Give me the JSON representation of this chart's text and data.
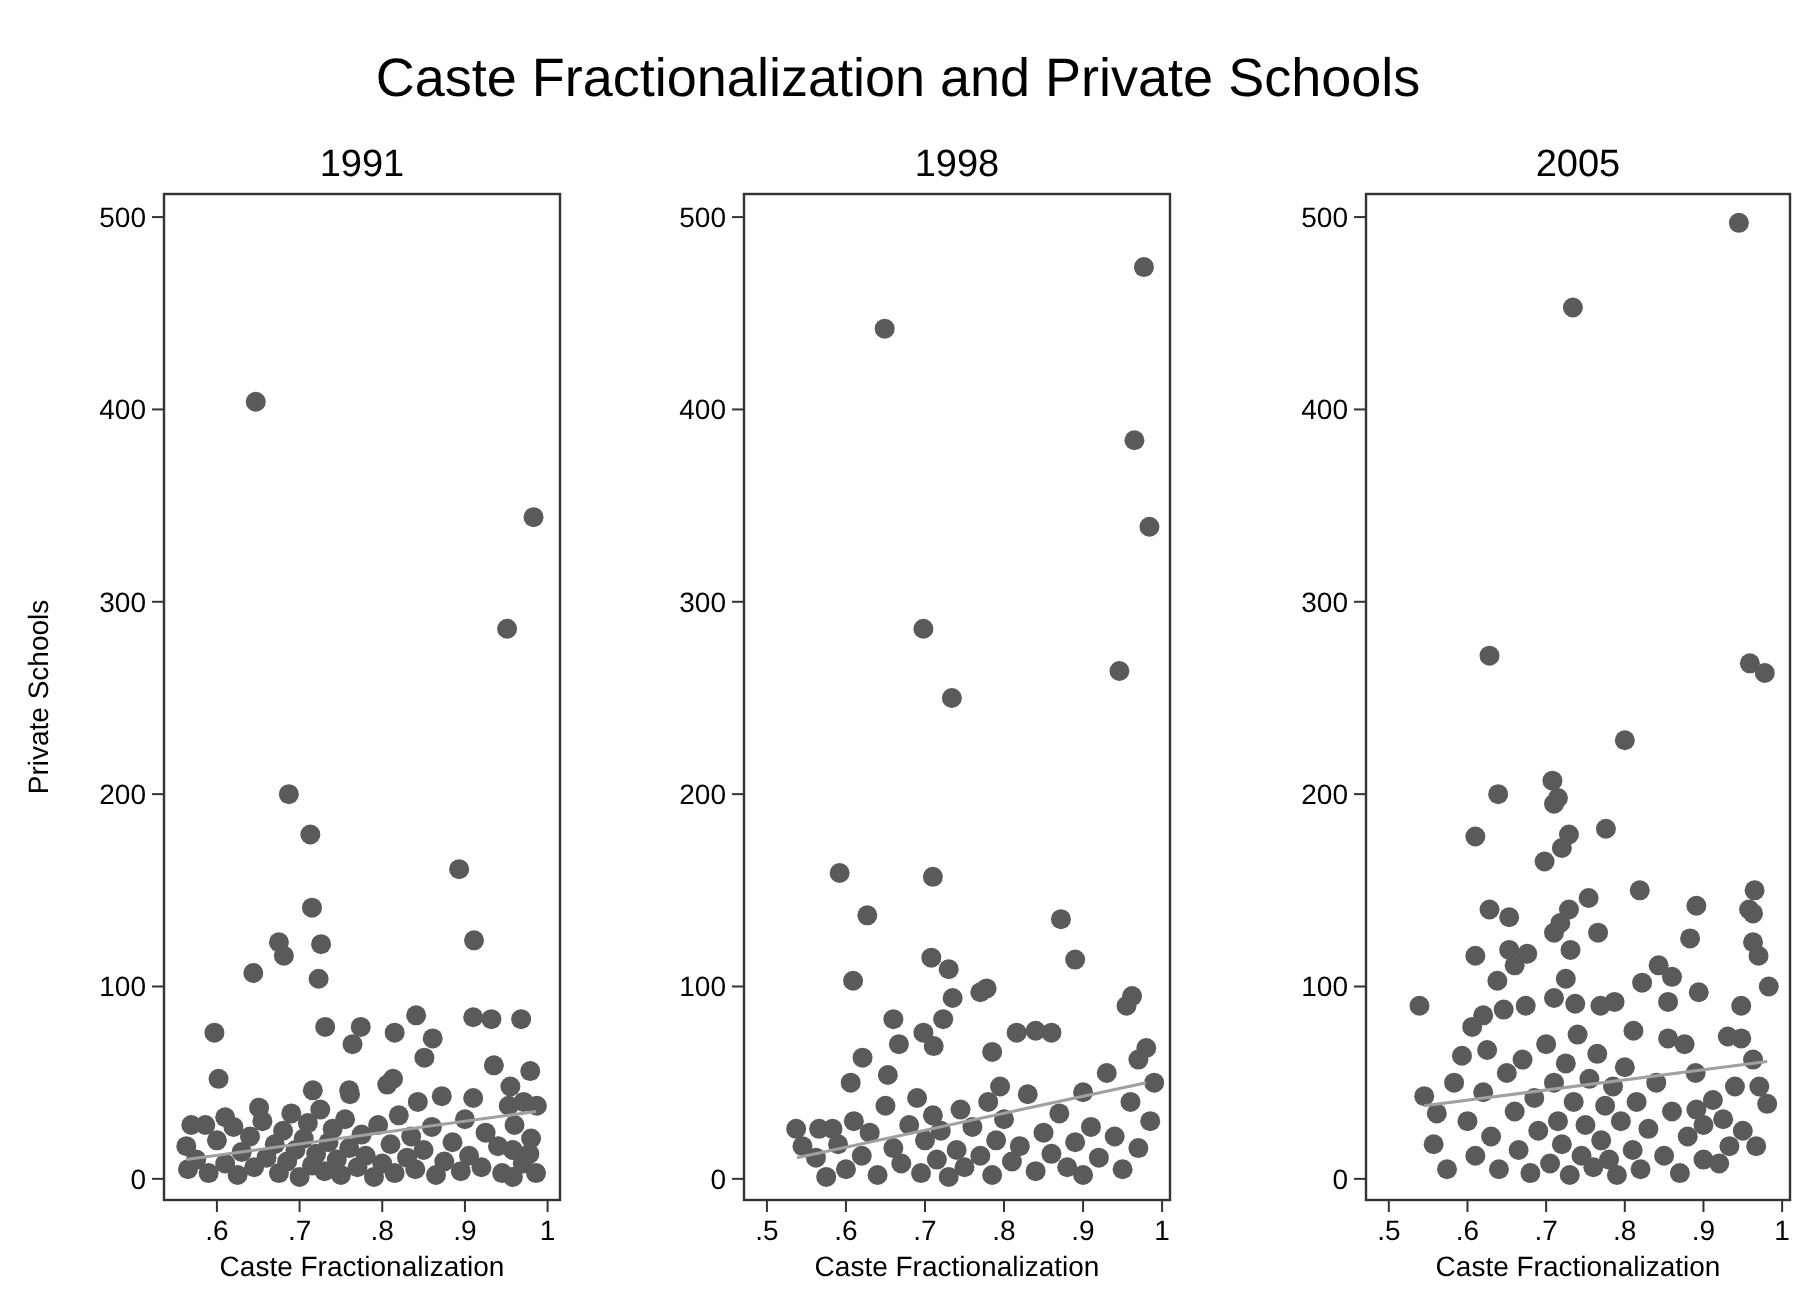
{
  "chart_data": [
    {
      "type": "scatter",
      "title": "1991",
      "xlabel": "Caste Fractionalization",
      "ylabel": "Private Schools",
      "annotations": [
        "Caste Fractionalization and Private Schools"
      ],
      "xlim": [
        0.536,
        1.015
      ],
      "ylim": [
        -11,
        512
      ],
      "xticks": [
        {
          "value": 0.6,
          "label": ".6"
        },
        {
          "value": 0.7,
          "label": ".7"
        },
        {
          "value": 0.8,
          "label": ".8"
        },
        {
          "value": 0.9,
          "label": ".9"
        },
        {
          "value": 1,
          "label": "1"
        }
      ],
      "yticks": [
        0,
        100,
        200,
        300,
        400,
        500
      ],
      "series": [
        {
          "marker": "circle",
          "color": "#5a5a5a",
          "x": [
            0.647,
            0.983,
            0.951,
            0.687,
            0.713,
            0.893,
            0.715,
            0.911,
            0.675,
            0.681,
            0.726,
            0.644,
            0.723,
            0.597,
            0.731,
            0.774,
            0.764,
            0.815,
            0.841,
            0.861,
            0.851,
            0.91,
            0.932,
            0.968,
            0.602,
            0.935,
            0.979,
            0.955,
            0.813,
            0.716,
            0.76,
            0.971,
            0.987,
            0.953,
            0.91,
            0.872,
            0.843,
            0.806,
            0.761,
            0.651,
            0.61,
            0.569,
            0.586,
            0.563,
            0.986,
            0.958,
            0.958,
            0.978,
            0.565,
            0.575,
            0.59,
            0.6,
            0.61,
            0.62,
            0.625,
            0.63,
            0.64,
            0.645,
            0.655,
            0.66,
            0.67,
            0.675,
            0.68,
            0.685,
            0.69,
            0.695,
            0.7,
            0.705,
            0.71,
            0.715,
            0.72,
            0.725,
            0.73,
            0.735,
            0.74,
            0.745,
            0.75,
            0.755,
            0.76,
            0.77,
            0.775,
            0.78,
            0.79,
            0.795,
            0.8,
            0.81,
            0.815,
            0.82,
            0.83,
            0.835,
            0.84,
            0.85,
            0.86,
            0.865,
            0.875,
            0.885,
            0.895,
            0.9,
            0.905,
            0.92,
            0.925,
            0.94,
            0.945,
            0.96,
            0.97,
            0.98
          ],
          "values": [
            404,
            344,
            286,
            200,
            179,
            161,
            141,
            124,
            123,
            116,
            122,
            107,
            104,
            76,
            79,
            79,
            70,
            76,
            85,
            73,
            63,
            84,
            83,
            83,
            52,
            59,
            56,
            48,
            52,
            46,
            46,
            40,
            38,
            38,
            42,
            43,
            40,
            49,
            44,
            37,
            32,
            28,
            28,
            17,
            3,
            1,
            15,
            13,
            5,
            10,
            3,
            20,
            8,
            27,
            2,
            14,
            22,
            6,
            30,
            11,
            18,
            3,
            25,
            9,
            34,
            15,
            1,
            21,
            29,
            7,
            13,
            36,
            4,
            19,
            26,
            10,
            2,
            31,
            16,
            6,
            23,
            12,
            1,
            28,
            8,
            18,
            3,
            33,
            11,
            22,
            5,
            15,
            27,
            2,
            9,
            19,
            4,
            31,
            12,
            6,
            24,
            17,
            3,
            28,
            8,
            21
          ]
        },
        {
          "type": "line",
          "marker": "none",
          "color": "#a0a0a0",
          "x": [
            0.563,
            0.986
          ],
          "values": [
            10,
            35
          ]
        }
      ]
    },
    {
      "type": "scatter",
      "title": "1998",
      "xlabel": "Caste Fractionalization",
      "xlim": [
        0.471,
        1.01
      ],
      "ylim": [
        -11,
        512
      ],
      "xticks": [
        {
          "value": 0.5,
          "label": ".5"
        },
        {
          "value": 0.6,
          "label": ".6"
        },
        {
          "value": 0.7,
          "label": ".7"
        },
        {
          "value": 0.8,
          "label": ".8"
        },
        {
          "value": 0.9,
          "label": ".9"
        },
        {
          "value": 1,
          "label": "1"
        }
      ],
      "yticks": [
        0,
        100,
        200,
        300,
        400,
        500
      ],
      "series": [
        {
          "marker": "circle",
          "color": "#5a5a5a",
          "x": [
            0.649,
            0.977,
            0.965,
            0.984,
            0.698,
            0.734,
            0.946,
            0.592,
            0.71,
            0.627,
            0.609,
            0.708,
            0.73,
            0.735,
            0.77,
            0.778,
            0.66,
            0.667,
            0.698,
            0.723,
            0.711,
            0.621,
            0.653,
            0.606,
            0.795,
            0.785,
            0.816,
            0.537,
            0.545,
            0.566,
            0.583,
            0.575,
            0.562,
            0.872,
            0.89,
            0.962,
            0.955,
            0.84,
            0.86,
            0.98,
            0.97,
            0.93,
            0.99,
            0.9,
            0.96,
            0.59,
            0.6,
            0.61,
            0.62,
            0.63,
            0.64,
            0.65,
            0.66,
            0.67,
            0.68,
            0.69,
            0.695,
            0.7,
            0.71,
            0.715,
            0.72,
            0.73,
            0.74,
            0.745,
            0.75,
            0.76,
            0.77,
            0.78,
            0.785,
            0.79,
            0.8,
            0.81,
            0.82,
            0.83,
            0.84,
            0.85,
            0.86,
            0.87,
            0.88,
            0.89,
            0.9,
            0.91,
            0.92,
            0.94,
            0.95,
            0.97,
            0.985
          ],
          "values": [
            442,
            474,
            384,
            339,
            286,
            250,
            264,
            159,
            157,
            137,
            103,
            115,
            109,
            94,
            97,
            99,
            83,
            70,
            76,
            83,
            69,
            63,
            54,
            50,
            48,
            66,
            76,
            26,
            17,
            26,
            26,
            1,
            11,
            135,
            114,
            95,
            90,
            77,
            76,
            68,
            62,
            55,
            50,
            45,
            40,
            18,
            5,
            30,
            12,
            24,
            2,
            38,
            16,
            8,
            28,
            42,
            3,
            20,
            33,
            10,
            25,
            1,
            15,
            36,
            6,
            27,
            12,
            40,
            2,
            20,
            31,
            9,
            17,
            44,
            4,
            24,
            13,
            34,
            6,
            19,
            2,
            27,
            11,
            22,
            5,
            16,
            30
          ]
        },
        {
          "type": "line",
          "marker": "none",
          "color": "#a0a0a0",
          "x": [
            0.538,
            0.98
          ],
          "values": [
            11,
            50
          ]
        }
      ]
    },
    {
      "type": "scatter",
      "title": "2005",
      "xlabel": "Caste Fractionalization",
      "xlim": [
        0.471,
        1.01
      ],
      "ylim": [
        -11,
        512
      ],
      "xticks": [
        {
          "value": 0.5,
          "label": ".5"
        },
        {
          "value": 0.6,
          "label": ".6"
        },
        {
          "value": 0.7,
          "label": ".7"
        },
        {
          "value": 0.8,
          "label": ".8"
        },
        {
          "value": 0.9,
          "label": ".9"
        },
        {
          "value": 1,
          "label": "1"
        }
      ],
      "yticks": [
        0,
        100,
        200,
        300,
        400,
        500
      ],
      "series": [
        {
          "marker": "circle",
          "color": "#5a5a5a",
          "x": [
            0.945,
            0.734,
            0.628,
            0.959,
            0.978,
            0.8,
            0.708,
            0.715,
            0.71,
            0.639,
            0.61,
            0.776,
            0.729,
            0.72,
            0.698,
            0.819,
            0.891,
            0.965,
            0.958,
            0.963,
            0.963,
            0.97,
            0.983,
            0.628,
            0.653,
            0.754,
            0.718,
            0.729,
            0.71,
            0.766,
            0.61,
            0.653,
            0.676,
            0.731,
            0.725,
            0.66,
            0.638,
            0.883,
            0.843,
            0.86,
            0.822,
            0.855,
            0.894,
            0.948,
            0.539,
            0.606,
            0.62,
            0.646,
            0.674,
            0.71,
            0.737,
            0.769,
            0.787,
            0.811,
            0.855,
            0.876,
            0.931,
            0.948,
            0.593,
            0.625,
            0.583,
            0.545,
            0.561,
            0.557,
            0.574,
            0.963,
            0.971,
            0.981,
            0.967,
            0.891,
            0.912,
            0.925,
            0.933,
            0.9,
            0.6,
            0.61,
            0.62,
            0.63,
            0.64,
            0.65,
            0.66,
            0.665,
            0.67,
            0.68,
            0.685,
            0.69,
            0.7,
            0.705,
            0.71,
            0.715,
            0.72,
            0.725,
            0.73,
            0.735,
            0.74,
            0.745,
            0.75,
            0.755,
            0.76,
            0.765,
            0.77,
            0.775,
            0.78,
            0.785,
            0.79,
            0.795,
            0.8,
            0.81,
            0.815,
            0.82,
            0.83,
            0.84,
            0.85,
            0.86,
            0.87,
            0.88,
            0.89,
            0.9,
            0.92,
            0.94,
            0.95
          ],
          "values": [
            497,
            453,
            272,
            268,
            263,
            228,
            207,
            198,
            195,
            200,
            178,
            182,
            179,
            172,
            165,
            150,
            142,
            150,
            140,
            138,
            123,
            116,
            100,
            140,
            136,
            146,
            133,
            140,
            128,
            128,
            116,
            119,
            117,
            119,
            104,
            111,
            103,
            125,
            111,
            105,
            102,
            92,
            97,
            90,
            90,
            79,
            85,
            88,
            90,
            94,
            91,
            90,
            92,
            77,
            73,
            70,
            74,
            73,
            64,
            67,
            50,
            43,
            34,
            18,
            5,
            62,
            48,
            39,
            17,
            36,
            41,
            31,
            17,
            10,
            30,
            12,
            45,
            22,
            5,
            55,
            35,
            15,
            62,
            3,
            42,
            25,
            70,
            8,
            50,
            30,
            18,
            60,
            2,
            40,
            75,
            12,
            28,
            52,
            6,
            65,
            20,
            38,
            10,
            48,
            2,
            30,
            58,
            15,
            40,
            5,
            26,
            50,
            12,
            35,
            3,
            22,
            55,
            28,
            8,
            48,
            25
          ]
        },
        {
          "type": "line",
          "marker": "none",
          "color": "#a0a0a0",
          "x": [
            0.545,
            0.981
          ],
          "values": [
            38,
            61
          ]
        }
      ]
    }
  ]
}
